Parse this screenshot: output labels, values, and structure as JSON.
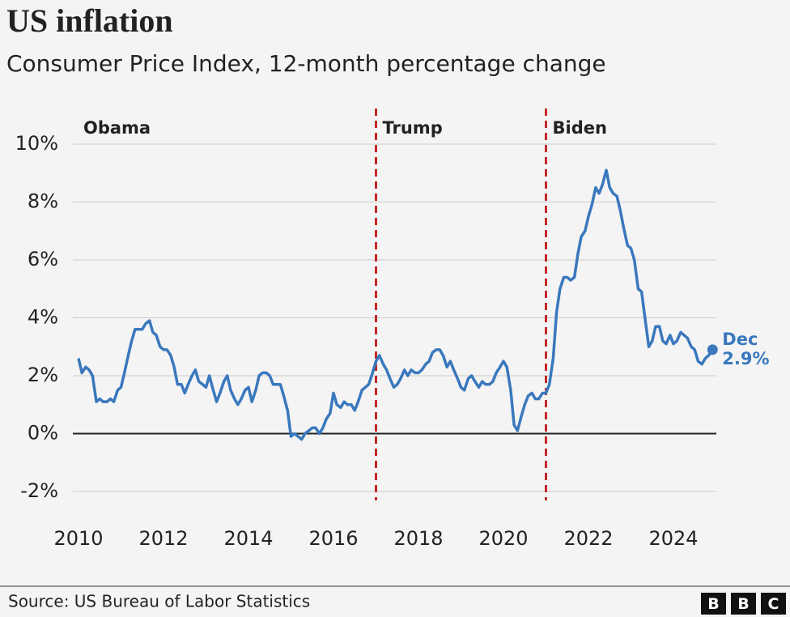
{
  "chart_data": {
    "type": "line",
    "title": "US inflation",
    "subtitle": "Consumer Price Index, 12-month percentage change",
    "source": "Source: US Bureau of Labor Statistics",
    "logo": [
      "B",
      "B",
      "C"
    ],
    "color": "#3a78bd",
    "grid": true,
    "xlim": [
      2010,
      2025
    ],
    "xticks": [
      2010,
      2012,
      2014,
      2016,
      2018,
      2020,
      2022,
      2024
    ],
    "ylim": [
      -2,
      10
    ],
    "yticks": [
      {
        "value": -2,
        "label": "-2%"
      },
      {
        "value": 0,
        "label": "0%"
      },
      {
        "value": 2,
        "label": "2%"
      },
      {
        "value": 4,
        "label": "4%"
      },
      {
        "value": 6,
        "label": "6%"
      },
      {
        "value": 8,
        "label": "8%"
      },
      {
        "value": 10,
        "label": "10%"
      }
    ],
    "presidents": [
      {
        "name": "Obama"
      },
      {
        "name": "Trump",
        "start": 2017
      },
      {
        "name": "Biden",
        "start": 2021
      }
    ],
    "end_annotation": {
      "text": "Dec",
      "value_label": "2.9%"
    },
    "x": [
      2010,
      2010.08,
      2010.17,
      2010.25,
      2010.33,
      2010.42,
      2010.5,
      2010.58,
      2010.67,
      2010.75,
      2010.83,
      2010.92,
      2011,
      2011.08,
      2011.17,
      2011.25,
      2011.33,
      2011.42,
      2011.5,
      2011.58,
      2011.67,
      2011.75,
      2011.83,
      2011.92,
      2012,
      2012.08,
      2012.17,
      2012.25,
      2012.33,
      2012.42,
      2012.5,
      2012.58,
      2012.67,
      2012.75,
      2012.83,
      2012.92,
      2013,
      2013.08,
      2013.17,
      2013.25,
      2013.33,
      2013.42,
      2013.5,
      2013.58,
      2013.67,
      2013.75,
      2013.83,
      2013.92,
      2014,
      2014.08,
      2014.17,
      2014.25,
      2014.33,
      2014.42,
      2014.5,
      2014.58,
      2014.67,
      2014.75,
      2014.83,
      2014.92,
      2015,
      2015.08,
      2015.17,
      2015.25,
      2015.33,
      2015.42,
      2015.5,
      2015.58,
      2015.67,
      2015.75,
      2015.83,
      2015.92,
      2016,
      2016.08,
      2016.17,
      2016.25,
      2016.33,
      2016.42,
      2016.5,
      2016.58,
      2016.67,
      2016.75,
      2016.83,
      2016.92,
      2017,
      2017.08,
      2017.17,
      2017.25,
      2017.33,
      2017.42,
      2017.5,
      2017.58,
      2017.67,
      2017.75,
      2017.83,
      2017.92,
      2018,
      2018.08,
      2018.17,
      2018.25,
      2018.33,
      2018.42,
      2018.5,
      2018.58,
      2018.67,
      2018.75,
      2018.83,
      2018.92,
      2019,
      2019.08,
      2019.17,
      2019.25,
      2019.33,
      2019.42,
      2019.5,
      2019.58,
      2019.67,
      2019.75,
      2019.83,
      2019.92,
      2020,
      2020.08,
      2020.17,
      2020.25,
      2020.33,
      2020.42,
      2020.5,
      2020.58,
      2020.67,
      2020.75,
      2020.83,
      2020.92,
      2021,
      2021.08,
      2021.17,
      2021.25,
      2021.33,
      2021.42,
      2021.5,
      2021.58,
      2021.67,
      2021.75,
      2021.83,
      2021.92,
      2022,
      2022.08,
      2022.17,
      2022.25,
      2022.33,
      2022.42,
      2022.5,
      2022.58,
      2022.67,
      2022.75,
      2022.83,
      2022.92,
      2023,
      2023.08,
      2023.17,
      2023.25,
      2023.33,
      2023.42,
      2023.5,
      2023.58,
      2023.67,
      2023.75,
      2023.83,
      2023.92,
      2024,
      2024.08,
      2024.17,
      2024.25,
      2024.33,
      2024.42,
      2024.5,
      2024.58,
      2024.67,
      2024.75,
      2024.83,
      2024.92
    ],
    "values": [
      2.6,
      2.1,
      2.3,
      2.2,
      2.0,
      1.1,
      1.2,
      1.1,
      1.1,
      1.2,
      1.1,
      1.5,
      1.6,
      2.1,
      2.7,
      3.2,
      3.6,
      3.6,
      3.6,
      3.8,
      3.9,
      3.5,
      3.4,
      3.0,
      2.9,
      2.9,
      2.7,
      2.3,
      1.7,
      1.7,
      1.4,
      1.7,
      2.0,
      2.2,
      1.8,
      1.7,
      1.6,
      2.0,
      1.5,
      1.1,
      1.4,
      1.8,
      2.0,
      1.5,
      1.2,
      1.0,
      1.2,
      1.5,
      1.6,
      1.1,
      1.5,
      2.0,
      2.1,
      2.1,
      2.0,
      1.7,
      1.7,
      1.7,
      1.3,
      0.8,
      -0.1,
      0.0,
      -0.1,
      -0.2,
      0.0,
      0.1,
      0.2,
      0.2,
      0.0,
      0.2,
      0.5,
      0.7,
      1.4,
      1.0,
      0.9,
      1.1,
      1.0,
      1.0,
      0.8,
      1.1,
      1.5,
      1.6,
      1.7,
      2.1,
      2.5,
      2.7,
      2.4,
      2.2,
      1.9,
      1.6,
      1.7,
      1.9,
      2.2,
      2.0,
      2.2,
      2.1,
      2.1,
      2.2,
      2.4,
      2.5,
      2.8,
      2.9,
      2.9,
      2.7,
      2.3,
      2.5,
      2.2,
      1.9,
      1.6,
      1.5,
      1.9,
      2.0,
      1.8,
      1.6,
      1.8,
      1.7,
      1.7,
      1.8,
      2.1,
      2.3,
      2.5,
      2.3,
      1.5,
      0.3,
      0.1,
      0.6,
      1.0,
      1.3,
      1.4,
      1.2,
      1.2,
      1.4,
      1.4,
      1.7,
      2.6,
      4.2,
      5.0,
      5.4,
      5.4,
      5.3,
      5.4,
      6.2,
      6.8,
      7.0,
      7.5,
      7.9,
      8.5,
      8.3,
      8.6,
      9.1,
      8.5,
      8.3,
      8.2,
      7.7,
      7.1,
      6.5,
      6.4,
      6.0,
      5.0,
      4.9,
      4.0,
      3.0,
      3.2,
      3.7,
      3.7,
      3.2,
      3.1,
      3.4,
      3.1,
      3.2,
      3.5,
      3.4,
      3.3,
      3.0,
      2.9,
      2.5,
      2.4,
      2.6,
      2.7,
      2.9
    ]
  }
}
